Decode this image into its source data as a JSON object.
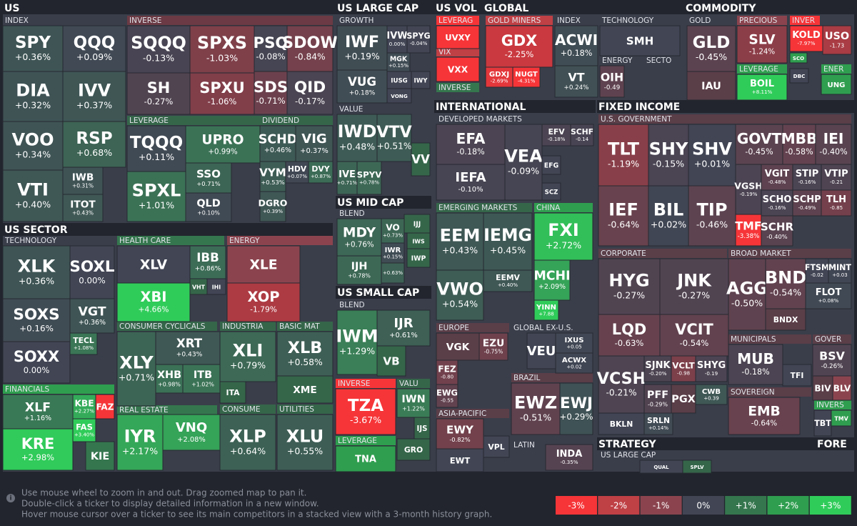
{
  "groups": [
    {
      "label": "US"
    },
    {
      "label": "INDEX"
    },
    {
      "label": "INVERSE"
    },
    {
      "label": "LEVERAGE"
    },
    {
      "label": "DIVIDEND"
    },
    {
      "label": "US SECTOR"
    },
    {
      "label": "TECHNOLOGY"
    },
    {
      "label": "FINANCIALS"
    },
    {
      "label": "HEALTH CARE"
    },
    {
      "label": "ENERGY"
    },
    {
      "label": "CONSUMER CYCLICALS"
    },
    {
      "label": "REAL ESTATE"
    },
    {
      "label": "INDUSTRIA"
    },
    {
      "label": "BASIC MAT"
    },
    {
      "label": "CONSUME"
    },
    {
      "label": "UTILITIES"
    },
    {
      "label": "US LARGE CAP"
    },
    {
      "label": "GROWTH"
    },
    {
      "label": "VALUE"
    },
    {
      "label": "US MID CAP"
    },
    {
      "label": "BLEND"
    },
    {
      "label": "US SMALL CAP"
    },
    {
      "label": "BLEND"
    },
    {
      "label": "INVERSE"
    },
    {
      "label": "LEVERAGE"
    },
    {
      "label": "VALU"
    },
    {
      "label": "US VOL"
    },
    {
      "label": "LEVERAG"
    },
    {
      "label": "VIX"
    },
    {
      "label": "INVERSE"
    },
    {
      "label": "GLOBAL"
    },
    {
      "label": "GOLD MINERS"
    },
    {
      "label": "INDEX"
    },
    {
      "label": "TECHNOLOGY"
    },
    {
      "label": "ENERGY"
    },
    {
      "label": "SECTO"
    },
    {
      "label": "COMMODITY"
    },
    {
      "label": "GOLD"
    },
    {
      "label": "PRECIOUS"
    },
    {
      "label": "LEVERAGE"
    },
    {
      "label": "INVER"
    },
    {
      "label": "ENER"
    },
    {
      "label": "INTERNATIONAL"
    },
    {
      "label": "DEVELOPED MARKETS"
    },
    {
      "label": "EMERGING MARKETS"
    },
    {
      "label": "CHINA"
    },
    {
      "label": "EUROPE"
    },
    {
      "label": "GLOBAL EX-U.S."
    },
    {
      "label": "BRAZIL"
    },
    {
      "label": "ASIA-PACIFIC"
    },
    {
      "label": "LATIN"
    },
    {
      "label": "FIXED INCOME"
    },
    {
      "label": "U.S. GOVERNMENT"
    },
    {
      "label": "CORPORATE"
    },
    {
      "label": "BROAD MARKET"
    },
    {
      "label": "MUNICIPALS"
    },
    {
      "label": "GOVER"
    },
    {
      "label": "SOVEREIGN"
    },
    {
      "label": "INVERS"
    },
    {
      "label": "STRATEGY"
    },
    {
      "label": "US LARGE CAP"
    },
    {
      "label": "FORE"
    }
  ],
  "tiles": [
    {
      "ticker": "SPY",
      "change": "+0.36%"
    },
    {
      "ticker": "QQQ",
      "change": "+0.09%"
    },
    {
      "ticker": "DIA",
      "change": "+0.32%"
    },
    {
      "ticker": "IVV",
      "change": "+0.37%"
    },
    {
      "ticker": "VOO",
      "change": "+0.34%"
    },
    {
      "ticker": "RSP",
      "change": "+0.68%"
    },
    {
      "ticker": "VTI",
      "change": "+0.40%"
    },
    {
      "ticker": "IWB",
      "change": "+0.31%"
    },
    {
      "ticker": "ITOT",
      "change": "+0.43%"
    },
    {
      "ticker": "SQQQ",
      "change": "-0.13%"
    },
    {
      "ticker": "SPXS",
      "change": "-1.03%"
    },
    {
      "ticker": "PSQ",
      "change": "-0.08%"
    },
    {
      "ticker": "SDOW",
      "change": "-0.84%"
    },
    {
      "ticker": "SH",
      "change": "-0.27%"
    },
    {
      "ticker": "SPXU",
      "change": "-1.06%"
    },
    {
      "ticker": "SDS",
      "change": "-0.71%"
    },
    {
      "ticker": "QID",
      "change": "-0.17%"
    },
    {
      "ticker": "TQQQ",
      "change": "+0.11%"
    },
    {
      "ticker": "UPRO",
      "change": "+0.99%"
    },
    {
      "ticker": "SPXL",
      "change": "+1.01%"
    },
    {
      "ticker": "SSO",
      "change": "+0.71%"
    },
    {
      "ticker": "QLD",
      "change": "+0.10%"
    },
    {
      "ticker": "SCHD",
      "change": "+0.46%"
    },
    {
      "ticker": "VIG",
      "change": "+0.37%"
    },
    {
      "ticker": "VYM",
      "change": "+0.53%"
    },
    {
      "ticker": "HDV",
      "change": "+0.07%"
    },
    {
      "ticker": "DVY",
      "change": "+0.87%"
    },
    {
      "ticker": "DGRO",
      "change": "+0.39%"
    },
    {
      "ticker": "XLK",
      "change": "+0.36%"
    },
    {
      "ticker": "SOXL",
      "change": "0.00%"
    },
    {
      "ticker": "SOXS",
      "change": "+0.16%"
    },
    {
      "ticker": "VGT",
      "change": "+0.36%"
    },
    {
      "ticker": "TECL",
      "change": "+1.08%"
    },
    {
      "ticker": "SOXX",
      "change": "0.00%"
    },
    {
      "ticker": "XLF",
      "change": "+1.16%"
    },
    {
      "ticker": "KBE",
      "change": "+2.27%"
    },
    {
      "ticker": "FAZ"
    },
    {
      "ticker": "FAS",
      "change": "+3.40%"
    },
    {
      "ticker": "KRE",
      "change": "+2.98%"
    },
    {
      "ticker": "KIE"
    },
    {
      "ticker": "XLV"
    },
    {
      "ticker": "IBB",
      "change": "+0.86%"
    },
    {
      "ticker": "VHT"
    },
    {
      "ticker": "IHI"
    },
    {
      "ticker": "XBI",
      "change": "+4.66%"
    },
    {
      "ticker": "XLE"
    },
    {
      "ticker": "XOP",
      "change": "-1.79%"
    },
    {
      "ticker": "XLY",
      "change": "+0.71%"
    },
    {
      "ticker": "XRT",
      "change": "+0.43%"
    },
    {
      "ticker": "XHB",
      "change": "+0.98%"
    },
    {
      "ticker": "ITB",
      "change": "+1.02%"
    },
    {
      "ticker": "IYR",
      "change": "+2.17%"
    },
    {
      "ticker": "VNQ",
      "change": "+2.08%"
    },
    {
      "ticker": "XLI",
      "change": "+0.79%"
    },
    {
      "ticker": "ITA"
    },
    {
      "ticker": "XLB",
      "change": "+0.58%"
    },
    {
      "ticker": "XME"
    },
    {
      "ticker": "XLP",
      "change": "+0.64%"
    },
    {
      "ticker": "XLU",
      "change": "+0.55%"
    },
    {
      "ticker": "IWF",
      "change": "+0.19%"
    },
    {
      "ticker": "IVW",
      "change": "0.00%"
    },
    {
      "ticker": "SPYG",
      "change": "-0.04%"
    },
    {
      "ticker": "MGK",
      "change": "+0.15%"
    },
    {
      "ticker": "VUG",
      "change": "+0.18%"
    },
    {
      "ticker": "IUSG"
    },
    {
      "ticker": "IWY"
    },
    {
      "ticker": "VONG"
    },
    {
      "ticker": "IWD",
      "change": "+0.48%"
    },
    {
      "ticker": "VTV",
      "change": "+0.51%"
    },
    {
      "ticker": "IVE",
      "change": "+0.71%"
    },
    {
      "ticker": "SPYV",
      "change": "+0.78%"
    },
    {
      "ticker": "VV"
    },
    {
      "ticker": "MDY",
      "change": "+0.76%"
    },
    {
      "ticker": "VO",
      "change": "+0.73%"
    },
    {
      "ticker": "IJJ"
    },
    {
      "ticker": "IWS"
    },
    {
      "ticker": "IWR",
      "change": "+0.15%"
    },
    {
      "change": "+0.63%"
    },
    {
      "ticker": "IWP"
    },
    {
      "ticker": "IJH",
      "change": "+0.78%"
    },
    {
      "ticker": "IWM",
      "change": "+1.29%"
    },
    {
      "ticker": "IJR",
      "change": "+0.61%"
    },
    {
      "ticker": "VB"
    },
    {
      "ticker": "TZA",
      "change": "-3.67%"
    },
    {
      "ticker": "TNA"
    },
    {
      "ticker": "IWN",
      "change": "+1.22%"
    },
    {
      "ticker": "IJS"
    },
    {
      "ticker": "GRO"
    },
    {
      "ticker": "UVXY"
    },
    {
      "ticker": "VXX"
    },
    {
      "ticker": "GDX",
      "change": "-2.25%"
    },
    {
      "ticker": "GDXJ",
      "change": "-2.69%"
    },
    {
      "ticker": "NUGT",
      "change": "-4.31%"
    },
    {
      "ticker": "ACWI",
      "change": "+0.18%"
    },
    {
      "ticker": "VT",
      "change": "+0.24%"
    },
    {
      "ticker": "SMH"
    },
    {
      "ticker": "OIH",
      "change": "-0.49"
    },
    {
      "ticker": "GLD",
      "change": "-0.45%"
    },
    {
      "ticker": "IAU"
    },
    {
      "ticker": "SLV",
      "change": "-1.24%"
    },
    {
      "ticker": "BOIL",
      "change": "+8.11%"
    },
    {
      "ticker": "KOLD",
      "change": "-7.97%"
    },
    {
      "ticker": "SCO"
    },
    {
      "ticker": "USO",
      "change": "-1.73"
    },
    {
      "ticker": "DBC"
    },
    {
      "ticker": "UNG"
    },
    {
      "ticker": "EFA",
      "change": "-0.18%"
    },
    {
      "ticker": "IEFA",
      "change": "-0.10%"
    },
    {
      "ticker": "VEA",
      "change": "-0.09%"
    },
    {
      "ticker": "EFV",
      "change": "-0.18%"
    },
    {
      "ticker": "SCHF",
      "change": "-0.14"
    },
    {
      "ticker": "EFG"
    },
    {
      "ticker": "SCZ"
    },
    {
      "ticker": "EEM",
      "change": "+0.43%"
    },
    {
      "ticker": "IEMG",
      "change": "+0.45%"
    },
    {
      "ticker": "EEMV",
      "change": "+0.40%"
    },
    {
      "ticker": "VWO",
      "change": "+0.54%"
    },
    {
      "ticker": "FXI",
      "change": "+2.72%"
    },
    {
      "ticker": "MCHI",
      "change": "+2.09%"
    },
    {
      "ticker": "YINN",
      "change": "+7.88"
    },
    {
      "ticker": "VGK"
    },
    {
      "ticker": "EZU",
      "change": "-0.75%"
    },
    {
      "ticker": "FEZ",
      "change": "-0.80"
    },
    {
      "ticker": "EWG",
      "change": "-0.55"
    },
    {
      "ticker": "VEU"
    },
    {
      "ticker": "IXUS",
      "change": "+0.05"
    },
    {
      "ticker": "ACWX",
      "change": "+0.02"
    },
    {
      "ticker": "EWZ",
      "change": "-0.51%"
    },
    {
      "ticker": "EWJ",
      "change": "+0.29%"
    },
    {
      "ticker": "EWY",
      "change": "-0.82%"
    },
    {
      "ticker": "VPL"
    },
    {
      "ticker": "EWT"
    },
    {
      "ticker": "INDA",
      "change": "-0.35%"
    },
    {
      "ticker": "TLT",
      "change": "-1.19%"
    },
    {
      "ticker": "SHY",
      "change": "-0.15%"
    },
    {
      "ticker": "SHV",
      "change": "+0.01%"
    },
    {
      "ticker": "GOVT",
      "change": "-0.45%"
    },
    {
      "ticker": "MBB",
      "change": "-0.58%"
    },
    {
      "ticker": "IEI",
      "change": "-0.40%"
    },
    {
      "ticker": "IEF",
      "change": "-0.64%"
    },
    {
      "ticker": "BIL",
      "change": "+0.02%"
    },
    {
      "ticker": "TIP",
      "change": "-0.46%"
    },
    {
      "ticker": "VGSH",
      "change": "-0.19%"
    },
    {
      "ticker": "VGIT",
      "change": "-0.48%"
    },
    {
      "ticker": "STIP",
      "change": "-0.16%"
    },
    {
      "ticker": "VTIP",
      "change": "-0.21"
    },
    {
      "ticker": "SCHO",
      "change": "-0.16%"
    },
    {
      "ticker": "SCHP",
      "change": "-0.49%"
    },
    {
      "ticker": "TLH",
      "change": "-0.85"
    },
    {
      "ticker": "TMF",
      "change": "-3.38%"
    },
    {
      "ticker": "SCHR",
      "change": "-0.40%"
    },
    {
      "ticker": "HYG",
      "change": "-0.27%"
    },
    {
      "ticker": "JNK",
      "change": "-0.27%"
    },
    {
      "ticker": "LQD",
      "change": "-0.63%"
    },
    {
      "ticker": "VCIT",
      "change": "-0.54%"
    },
    {
      "ticker": "VCSH",
      "change": "-0.21%"
    },
    {
      "ticker": "SJNK",
      "change": "-0.20%"
    },
    {
      "ticker": "VCLT",
      "change": "-0.98"
    },
    {
      "ticker": "SHYG",
      "change": "-0.19"
    },
    {
      "ticker": "PFF",
      "change": "-0.29%"
    },
    {
      "ticker": "PGX"
    },
    {
      "ticker": "CWB",
      "change": "+0.39"
    },
    {
      "ticker": "BKLN"
    },
    {
      "ticker": "SRLN",
      "change": "+0.14%"
    },
    {
      "ticker": "AGG",
      "change": "-0.50%"
    },
    {
      "ticker": "BND",
      "change": "-0.54%"
    },
    {
      "ticker": "FTSM",
      "change": "-0.02"
    },
    {
      "ticker": "MINT",
      "change": "+0.03"
    },
    {
      "ticker": "FLOT",
      "change": "+0.08%"
    },
    {
      "ticker": "BNDX"
    },
    {
      "ticker": "MUB",
      "change": "-0.18%"
    },
    {
      "ticker": "TFI"
    },
    {
      "ticker": "BSV",
      "change": "-0.26%"
    },
    {
      "ticker": "BIV"
    },
    {
      "ticker": "BLV"
    },
    {
      "ticker": "EMB",
      "change": "-0.64%"
    },
    {
      "ticker": "TBT"
    },
    {
      "ticker": "TMV"
    },
    {
      "ticker": "QUAL"
    },
    {
      "ticker": "SPLV"
    }
  ],
  "help": [
    "Use mouse wheel to zoom in and out. Drag zoomed map to pan it.",
    "Double-click a ticker to display detailed information in a new window.",
    "Hover mouse cursor over a ticker to see its main competitors in a stacked view with a 3-month history graph."
  ],
  "legend": [
    "-3%",
    "-2%",
    "-1%",
    "0%",
    "+1%",
    "+2%",
    "+3%"
  ]
}
